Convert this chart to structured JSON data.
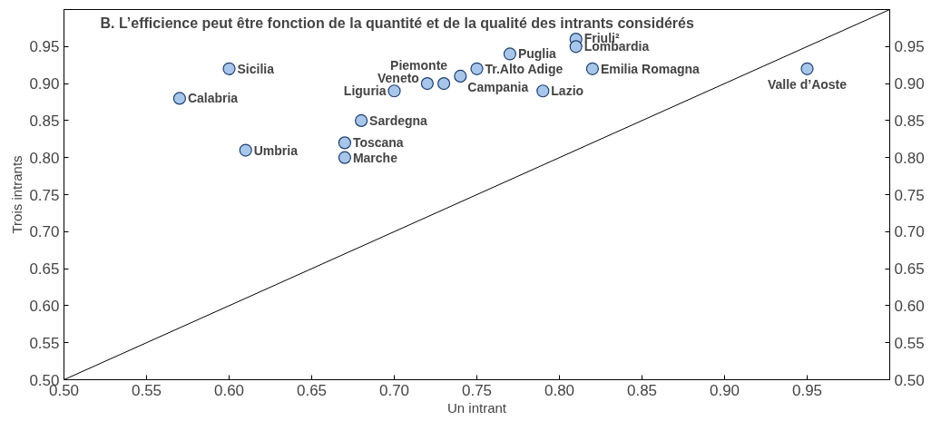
{
  "chart_data": {
    "type": "scatter",
    "title": "B. L’efficience peut être fonction de la quantité et de la qualité des intrants considérés",
    "xlabel": "Un intrant",
    "ylabel": "Trois intrants",
    "xlim": [
      0.5,
      1.0
    ],
    "ylim": [
      0.5,
      1.0
    ],
    "y2lim": [
      0.5,
      1.0
    ],
    "xticks": [
      {
        "value": 0.5,
        "label": "0.50"
      },
      {
        "value": 0.55,
        "label": "0.55"
      },
      {
        "value": 0.6,
        "label": "0.60"
      },
      {
        "value": 0.65,
        "label": "0.65"
      },
      {
        "value": 0.7,
        "label": "0.70"
      },
      {
        "value": 0.75,
        "label": "0.75"
      },
      {
        "value": 0.8,
        "label": "0.80"
      },
      {
        "value": 0.85,
        "label": "0.85"
      },
      {
        "value": 0.9,
        "label": "0.90"
      },
      {
        "value": 0.95,
        "label": "0.95"
      }
    ],
    "yticks": [
      {
        "value": 0.5,
        "label": "0.50"
      },
      {
        "value": 0.55,
        "label": "0.55"
      },
      {
        "value": 0.6,
        "label": "0.60"
      },
      {
        "value": 0.65,
        "label": "0.65"
      },
      {
        "value": 0.7,
        "label": "0.70"
      },
      {
        "value": 0.75,
        "label": "0.75"
      },
      {
        "value": 0.8,
        "label": "0.80"
      },
      {
        "value": 0.85,
        "label": "0.85"
      },
      {
        "value": 0.9,
        "label": "0.90"
      },
      {
        "value": 0.95,
        "label": "0.95"
      }
    ],
    "y2ticks": [
      {
        "value": 0.5,
        "label": "0.50"
      },
      {
        "value": 0.55,
        "label": "0.55"
      },
      {
        "value": 0.6,
        "label": "0.60"
      },
      {
        "value": 0.65,
        "label": "0.65"
      },
      {
        "value": 0.7,
        "label": "0.70"
      },
      {
        "value": 0.75,
        "label": "0.75"
      },
      {
        "value": 0.8,
        "label": "0.80"
      },
      {
        "value": 0.85,
        "label": "0.85"
      },
      {
        "value": 0.9,
        "label": "0.90"
      },
      {
        "value": 0.95,
        "label": "0.95"
      }
    ],
    "grid": false,
    "series": [
      {
        "type": "line",
        "color": "#000000",
        "x": [
          0.5,
          1.0
        ],
        "values": [
          0.5,
          1.0
        ]
      },
      {
        "marker": "circle",
        "color": "#a8c6ea",
        "x": [
          0.6,
          0.57,
          0.61,
          0.68,
          0.67,
          0.67,
          0.7,
          0.72,
          0.73,
          0.74,
          0.75,
          0.77,
          0.79,
          0.81,
          0.81,
          0.82,
          0.95
        ],
        "values": [
          0.92,
          0.88,
          0.81,
          0.85,
          0.82,
          0.8,
          0.89,
          0.9,
          0.9,
          0.91,
          0.92,
          0.94,
          0.89,
          0.96,
          0.95,
          0.92,
          0.92
        ]
      }
    ],
    "annotations": [
      {
        "text": "Sicilia",
        "x": 0.6,
        "y": 0.92
      },
      {
        "text": "Calabria",
        "x": 0.57,
        "y": 0.88
      },
      {
        "text": "Umbria",
        "x": 0.61,
        "y": 0.81
      },
      {
        "text": "Sardegna",
        "x": 0.68,
        "y": 0.85
      },
      {
        "text": "Toscana",
        "x": 0.67,
        "y": 0.82
      },
      {
        "text": "Marche",
        "x": 0.67,
        "y": 0.8
      },
      {
        "text": "Liguria",
        "x": 0.7,
        "y": 0.89
      },
      {
        "text": "Veneto",
        "x": 0.72,
        "y": 0.9
      },
      {
        "text": "Piemonte",
        "x": 0.73,
        "y": 0.9
      },
      {
        "text": "Campania",
        "x": 0.74,
        "y": 0.91
      },
      {
        "text": "Tr.Alto Adige",
        "x": 0.75,
        "y": 0.92
      },
      {
        "text": "Puglia",
        "x": 0.77,
        "y": 0.94
      },
      {
        "text": "Lazio",
        "x": 0.79,
        "y": 0.89
      },
      {
        "text": "Friuli²",
        "x": 0.81,
        "y": 0.96
      },
      {
        "text": "Lombardia",
        "x": 0.81,
        "y": 0.95
      },
      {
        "text": "Emilia Romagna",
        "x": 0.82,
        "y": 0.92
      },
      {
        "text": "Valle d’Aoste",
        "x": 0.95,
        "y": 0.92
      }
    ]
  }
}
